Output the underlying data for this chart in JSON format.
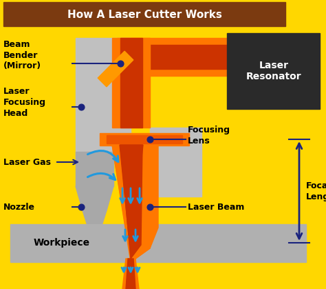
{
  "title": "How A Laser Cutter Works",
  "title_bg": "#7B3A10",
  "title_color": "#FFFFFF",
  "bg_color": "#FFD700",
  "labels": {
    "beam_bender": "Beam\nBender\n(Mirror)",
    "laser_focusing": "Laser\nFocusing\nHead",
    "laser_gas": "Laser Gas",
    "nozzle": "Nozzle",
    "focusing_lens": "Focusing\nLens",
    "laser_beam": "Laser Beam",
    "focal_length": "Focal\nLength",
    "laser_resonator": "Laser\nResonator",
    "workpiece": "Workpiece"
  },
  "label_color": "#000000",
  "label_fontsize": 9,
  "arrow_color": "#1a237e",
  "cyan_arrow_color": "#2299DD",
  "colors": {
    "gray_light": "#C0C0C0",
    "gray_mid": "#A8A8A8",
    "gray_dark": "#888888",
    "orange_bright": "#FF7700",
    "orange_mid": "#EE5500",
    "orange_dark": "#CC3300",
    "dark_box": "#2A2A2A",
    "workpiece": "#B0B0B0",
    "mirror_orange": "#FF9900"
  }
}
